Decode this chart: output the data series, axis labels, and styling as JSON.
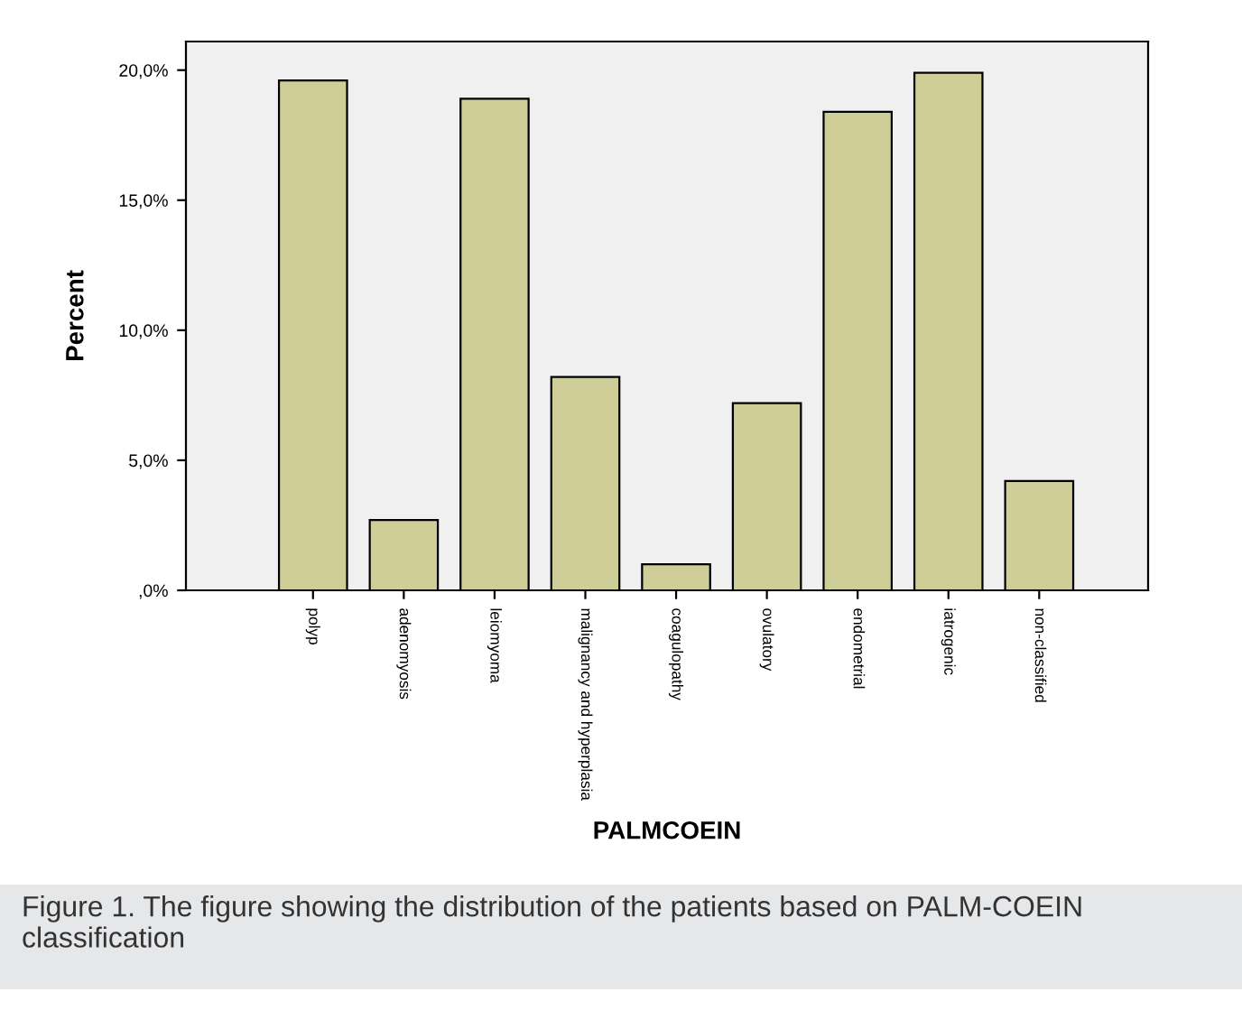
{
  "chart_data": {
    "type": "bar",
    "xlabel": "PALMCOEIN",
    "ylabel": "Percent",
    "categories": [
      "polyp",
      "adenomyosis",
      "leiomyoma",
      "malignancy and hyperplasia",
      "coagulopathy",
      "ovulatory",
      "endometrial",
      "iatrogenic",
      "non-classified"
    ],
    "values": [
      19.6,
      2.7,
      18.9,
      8.2,
      1.0,
      7.2,
      18.4,
      19.9,
      4.2
    ],
    "color": "#cfcd98",
    "ylim": [
      0,
      21.1
    ],
    "yticks": [
      {
        "value": 0,
        "label": ",0%"
      },
      {
        "value": 5,
        "label": "5,0%"
      },
      {
        "value": 10,
        "label": "10,0%"
      },
      {
        "value": 15,
        "label": "15,0%"
      },
      {
        "value": 20,
        "label": "20,0%"
      }
    ],
    "grid": false,
    "annotations": [
      "Figure 1. The figure showing the distribution of the patients based on PALM-COEIN classification"
    ]
  }
}
